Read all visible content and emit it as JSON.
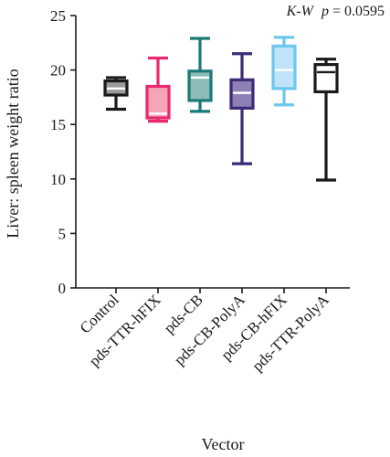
{
  "chart_data": {
    "type": "box",
    "annotation": {
      "test_italic": "K-W",
      "p_italic": "p",
      "rest": " = 0.0595"
    },
    "xlabel": "Vector",
    "ylabel": "Liver: spleen weight ratio",
    "ylim": [
      0,
      25
    ],
    "yticks": [
      0,
      5,
      10,
      15,
      20,
      25
    ],
    "grid": false,
    "categories": [
      "Control",
      "pds-TTR-hFIX",
      "pds-CB",
      "pds-CB-PolyA",
      "pds-CB-hFIX",
      "pds-TTR-PolyA"
    ],
    "boxes": [
      {
        "name": "Control",
        "min": 16.4,
        "q1": 17.7,
        "median": 18.3,
        "q3": 19.0,
        "max": 19.3,
        "color": "#1a1a1a",
        "fill": "#9a9a9a"
      },
      {
        "name": "pds-TTR-hFIX",
        "min": 15.3,
        "q1": 15.6,
        "median": 16.0,
        "q3": 18.5,
        "max": 21.1,
        "color": "#e8296e",
        "fill": "#f4a5b8"
      },
      {
        "name": "pds-CB",
        "min": 16.2,
        "q1": 17.2,
        "median": 19.3,
        "q3": 19.9,
        "max": 22.9,
        "color": "#1a7a78",
        "fill": "#8cbcb8"
      },
      {
        "name": "pds-CB-PolyA",
        "min": 11.4,
        "q1": 16.5,
        "median": 17.9,
        "q3": 19.1,
        "max": 21.5,
        "color": "#3d2a78",
        "fill": "#8e80b4"
      },
      {
        "name": "pds-CB-hFIX",
        "min": 16.8,
        "q1": 18.3,
        "median": 20.0,
        "q3": 22.2,
        "max": 23.0,
        "color": "#6cc7ef",
        "fill": "#bfe4f7"
      },
      {
        "name": "pds-TTR-PolyA",
        "min": 9.9,
        "q1": 18.0,
        "median": 19.8,
        "q3": 20.5,
        "max": 21.0,
        "color": "#1a1a1a",
        "fill": "#ffffff"
      }
    ]
  }
}
